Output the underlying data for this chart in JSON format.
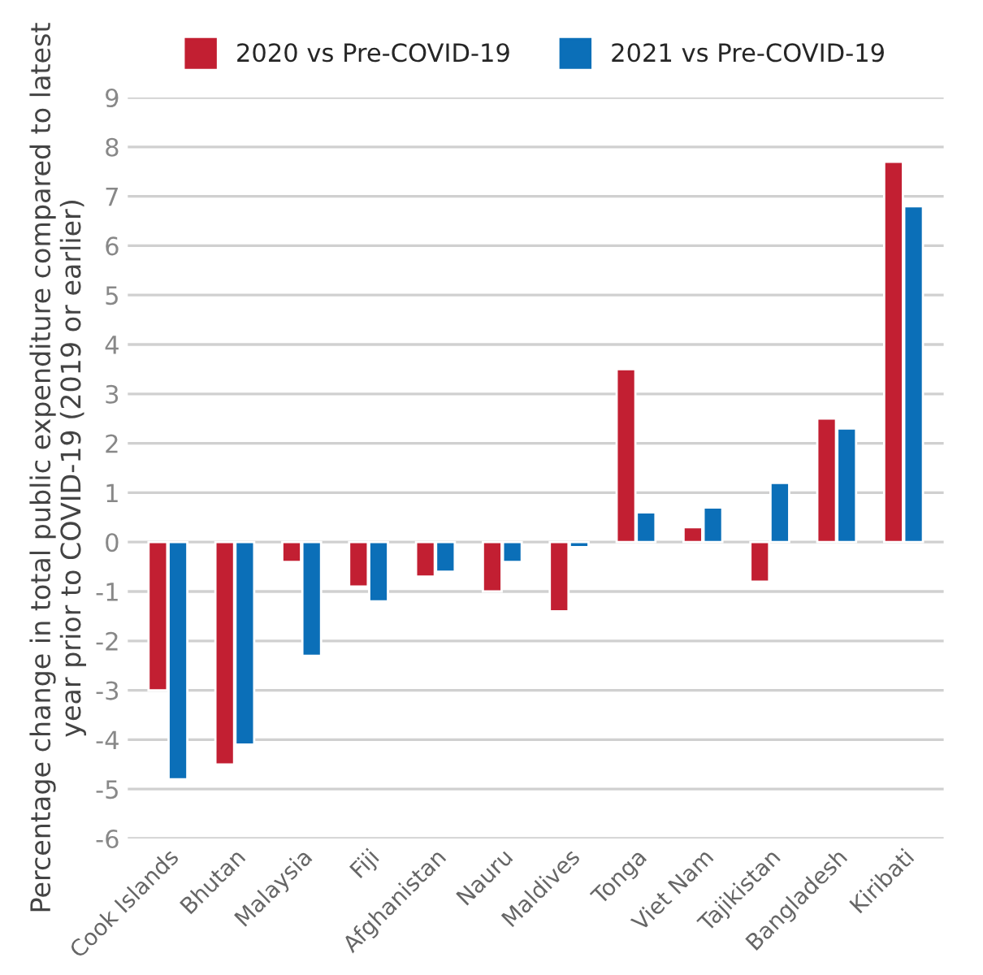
{
  "chart_data": {
    "type": "bar",
    "ylabel": "Percentage change in total public expenditure compared to latest year prior to COVID-19 (2019 or earlier)",
    "categories": [
      "Cook Islands",
      "Bhutan",
      "Malaysia",
      "Fiji",
      "Afghanistan",
      "Nauru",
      "Maldives",
      "Tonga",
      "Viet Nam",
      "Tajikistan",
      "Bangladesh",
      "Kiribati"
    ],
    "series": [
      {
        "name": "2020 vs Pre-COVID-19",
        "color": "#c21f32",
        "values": [
          -3.0,
          -4.5,
          -0.4,
          -0.9,
          -0.7,
          -1.0,
          -1.4,
          3.5,
          0.3,
          -0.8,
          2.5,
          7.7
        ]
      },
      {
        "name": "2021 vs Pre-COVID-19",
        "color": "#0b6fb8",
        "values": [
          -4.8,
          -4.1,
          -2.3,
          -1.2,
          -0.6,
          -0.4,
          -0.1,
          0.6,
          0.7,
          1.2,
          2.3,
          6.8
        ]
      }
    ],
    "ylim": [
      -6,
      9
    ],
    "yticks": [
      -6,
      -5,
      -4,
      -3,
      -2,
      -1,
      0,
      1,
      2,
      3,
      4,
      5,
      6,
      7,
      8,
      9
    ],
    "grid": "y",
    "legend": "top"
  }
}
